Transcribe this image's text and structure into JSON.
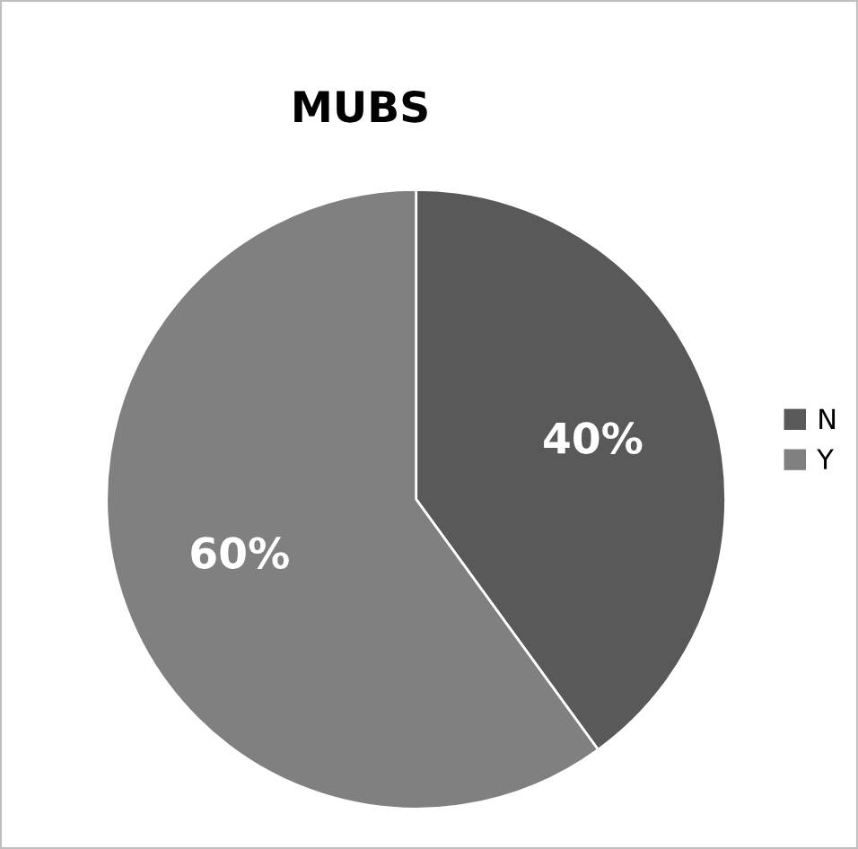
{
  "chart_data": {
    "type": "pie",
    "title": "MUBS",
    "categories": [
      "N",
      "Y"
    ],
    "values": [
      40,
      60
    ],
    "colors": [
      "#595959",
      "#808080"
    ],
    "value_labels": [
      "40%",
      "60%"
    ],
    "legend": "right"
  }
}
